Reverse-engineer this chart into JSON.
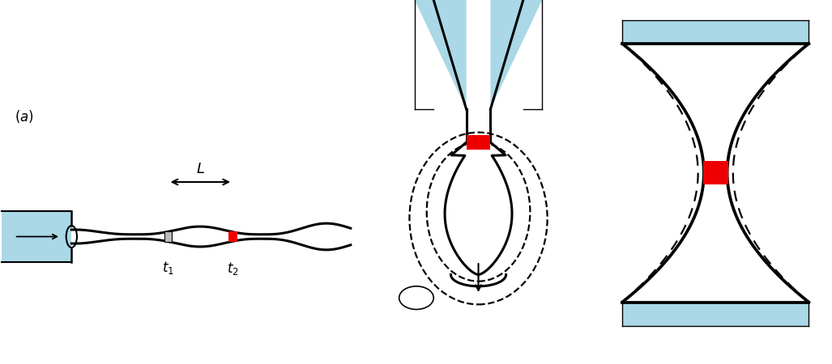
{
  "bg_color": "#ffffff",
  "nozzle_color": "#aad8e6",
  "red_color": "#ee0000",
  "gray_color": "#aaaaaa",
  "black": "#000000",
  "lw": 2.2,
  "lw_dash": 1.6
}
